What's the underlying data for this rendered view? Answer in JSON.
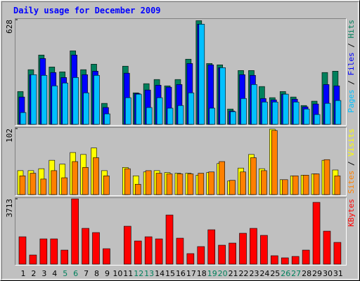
{
  "chart_data": [
    {
      "type": "bar",
      "title": "Daily usage for December 2009",
      "ylim": [
        0,
        628
      ],
      "yticks": [
        628
      ],
      "series": [
        {
          "name": "Hits",
          "color": "#00805c",
          "values": [
            197,
            328,
            416,
            344,
            315,
            441,
            328,
            361,
            126,
            0,
            349,
            189,
            244,
            269,
            231,
            269,
            391,
            622,
            365,
            357,
            92,
            323,
            323,
            227,
            160,
            197,
            164,
            113,
            139,
            311,
            319
          ]
        },
        {
          "name": "Files",
          "color": "#0000ff",
          "values": [
            164,
            298,
            395,
            311,
            281,
            416,
            298,
            319,
            101,
            0,
            307,
            185,
            206,
            235,
            223,
            239,
            365,
            601,
            357,
            340,
            80,
            298,
            294,
            155,
            147,
            181,
            151,
            105,
            122,
            239,
            231
          ]
        },
        {
          "name": "Pages",
          "color": "#00c0ff",
          "values": [
            71,
            298,
            294,
            231,
            248,
            281,
            189,
            294,
            63,
            0,
            160,
            181,
            101,
            160,
            97,
            113,
            189,
            601,
            97,
            340,
            76,
            155,
            239,
            134,
            134,
            181,
            134,
            92,
            59,
            126,
            143
          ]
        }
      ]
    },
    {
      "type": "bar",
      "ylim": [
        0,
        102
      ],
      "yticks": [
        102
      ],
      "series": [
        {
          "name": "Visits",
          "color": "#ffff00",
          "values": [
            37,
            37,
            40,
            53,
            47,
            65,
            62,
            72,
            37,
            0,
            42,
            29,
            35,
            37,
            34,
            33,
            33,
            30,
            34,
            48,
            21,
            41,
            62,
            40,
            101,
            23,
            29,
            30,
            32,
            53,
            38
          ]
        },
        {
          "name": "Sites",
          "color": "#ff8000",
          "values": [
            29,
            33,
            24,
            37,
            26,
            51,
            42,
            57,
            29,
            0,
            40,
            16,
            37,
            33,
            32,
            32,
            32,
            33,
            35,
            51,
            22,
            35,
            57,
            37,
            99,
            23,
            29,
            30,
            32,
            54,
            29
          ]
        }
      ]
    },
    {
      "type": "bar",
      "ylim": [
        0,
        3713
      ],
      "yticks": [
        3713
      ],
      "categories": [
        "1",
        "2",
        "3",
        "4",
        "5",
        "6",
        "7",
        "8",
        "9",
        "10",
        "11",
        "12",
        "13",
        "14",
        "15",
        "16",
        "17",
        "18",
        "19",
        "20",
        "21",
        "22",
        "23",
        "24",
        "25",
        "26",
        "27",
        "28",
        "29",
        "30",
        "31"
      ],
      "category_colors": [
        "#000000",
        "#000000",
        "#000000",
        "#000000",
        "#00805c",
        "#00805c",
        "#000000",
        "#000000",
        "#000000",
        "#000000",
        "#000000",
        "#00805c",
        "#00805c",
        "#000000",
        "#000000",
        "#000000",
        "#000000",
        "#000000",
        "#00805c",
        "#00805c",
        "#000000",
        "#000000",
        "#000000",
        "#000000",
        "#000000",
        "#00805c",
        "#00805c",
        "#000000",
        "#000000",
        "#000000",
        "#000000"
      ],
      "series": [
        {
          "name": "KBytes",
          "color": "#ff0000",
          "values": [
            1556,
            519,
            1436,
            1436,
            798,
            3711,
            2035,
            1795,
            878,
            0,
            2155,
            1317,
            1556,
            1436,
            2793,
            1476,
            599,
            998,
            1955,
            1077,
            1197,
            1756,
            2035,
            1636,
            479,
            359,
            439,
            798,
            3512,
            1875,
            1237
          ]
        }
      ]
    }
  ]
}
